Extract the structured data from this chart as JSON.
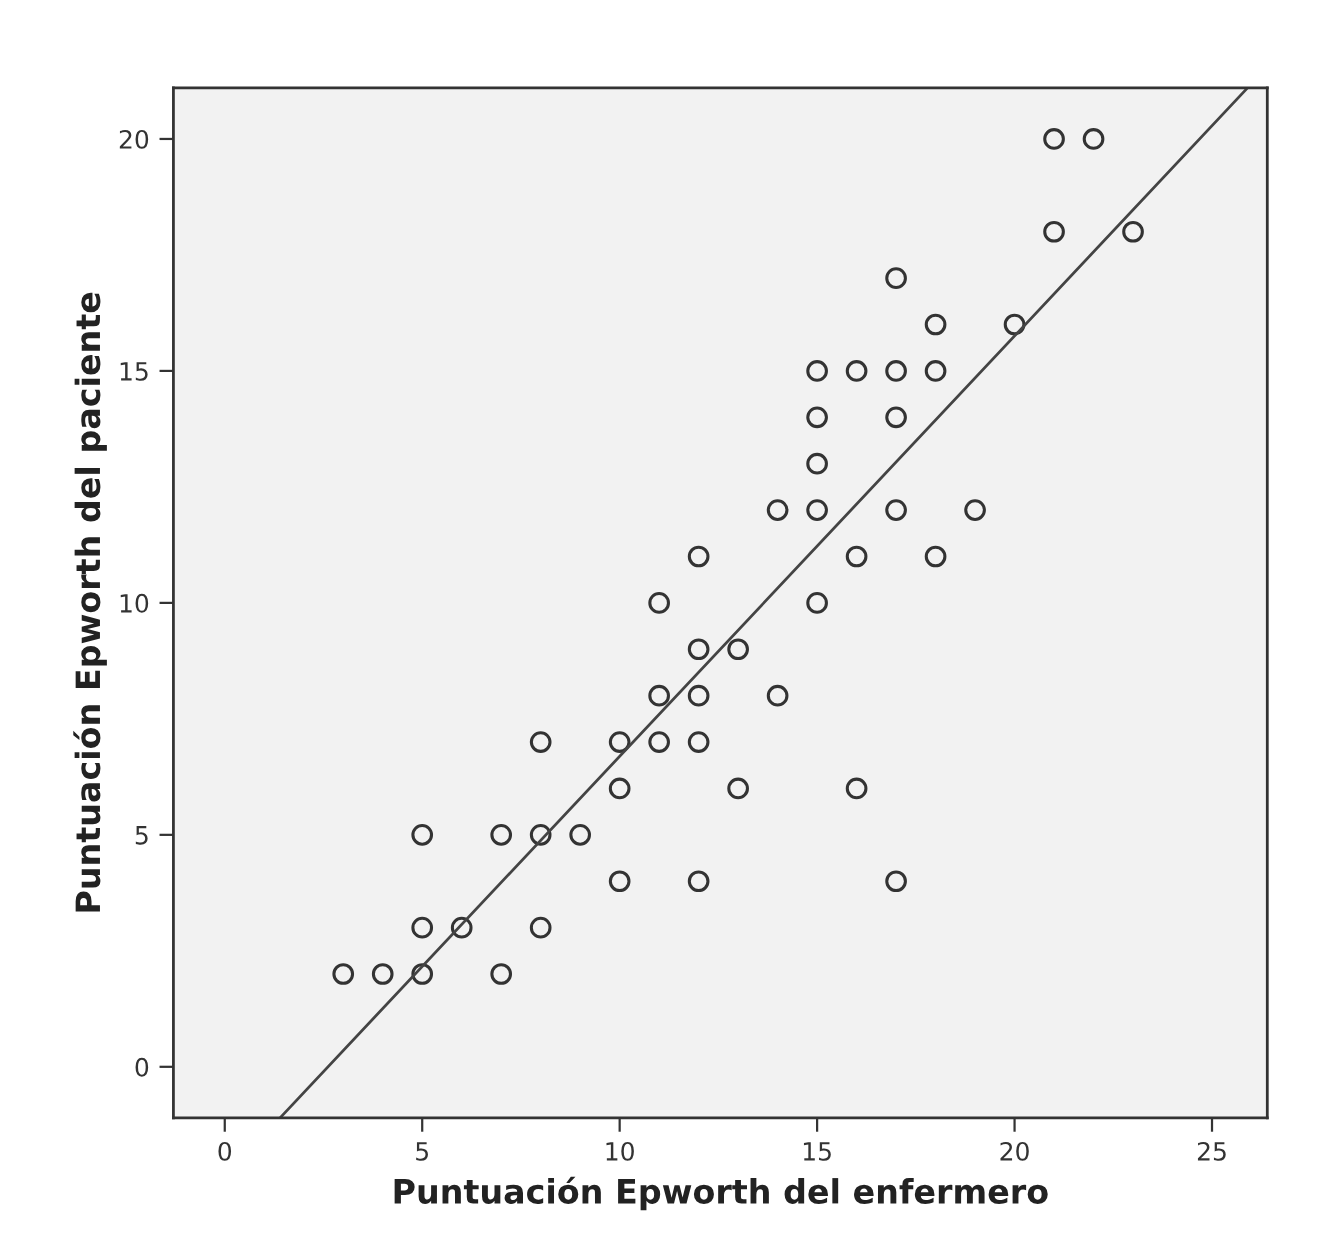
{
  "chart_data": {
    "type": "scatter",
    "xlabel": "Puntuación Epworth del enfermero",
    "ylabel": "Puntuación Epworth del paciente",
    "xlim": [
      -1.3,
      26.4
    ],
    "ylim": [
      -1.1,
      21.1
    ],
    "xticks": [
      0,
      5,
      10,
      15,
      20,
      25
    ],
    "yticks": [
      0,
      5,
      10,
      15,
      20
    ],
    "grid": false,
    "series": [
      {
        "marker": "circle",
        "color": "#333333",
        "x": [
          3,
          4,
          5,
          5,
          5,
          6,
          7,
          7,
          8,
          8,
          8,
          9,
          10,
          10,
          10,
          11,
          11,
          11,
          12,
          12,
          12,
          12,
          12,
          13,
          13,
          14,
          14,
          15,
          15,
          15,
          15,
          15,
          16,
          16,
          16,
          17,
          17,
          17,
          17,
          17,
          18,
          18,
          18,
          19,
          20,
          21,
          21,
          22,
          23
        ],
        "values": [
          2,
          2,
          2,
          3,
          5,
          3,
          5,
          2,
          7,
          5,
          3,
          5,
          7,
          6,
          4,
          10,
          8,
          7,
          11,
          9,
          8,
          7,
          4,
          9,
          6,
          12,
          8,
          15,
          14,
          13,
          12,
          10,
          15,
          11,
          6,
          17,
          15,
          14,
          12,
          4,
          16,
          15,
          11,
          12,
          16,
          20,
          18,
          20,
          18
        ]
      },
      {
        "type": "line",
        "marker": "none",
        "color": "#444444",
        "x": [
          1.4,
          25.9
        ],
        "values": [
          -1.1,
          21.1
        ]
      }
    ]
  }
}
